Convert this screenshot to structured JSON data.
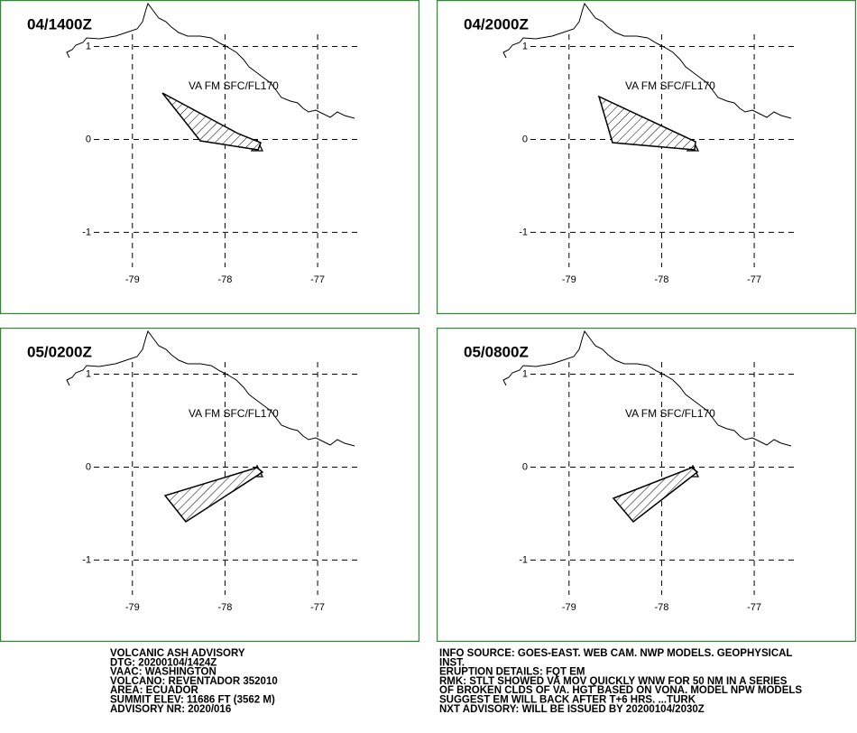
{
  "map": {
    "xlim": [
      -80.43,
      -75.9
    ],
    "ylim": [
      -1.88,
      1.5
    ],
    "lon_ticks": [
      -79,
      -78,
      -77
    ],
    "lat_ticks": [
      1,
      0,
      -1
    ]
  },
  "panels": [
    {
      "title": "04/1400Z",
      "label": "VA FM SFC/FL170"
    },
    {
      "title": "04/2000Z",
      "label": "VA FM SFC/FL170"
    },
    {
      "title": "05/0200Z",
      "label": "VA FM SFC/FL170"
    },
    {
      "title": "05/0800Z",
      "label": "VA FM SFC/FL170"
    }
  ],
  "advisory": {
    "left": [
      "VOLCANIC ASH ADVISORY",
      "DTG: 20200104/1424Z",
      "VAAC: WASHINGTON",
      "VOLCANO: REVENTADOR 352010",
      "AREA: ECUADOR",
      "SUMMIT ELEV: 11686 FT (3562 M)",
      "ADVISORY NR: 2020/016"
    ],
    "right": [
      "INFO SOURCE: GOES-EAST. WEB CAM. NWP MODELS. GEOPHYSICAL",
      "INST.",
      "ERUPTION DETAILS: FQT EM",
      "RMK: STLT SHOWED VA MOV QUICKLY WNW FOR 50 NM IN A SERIES",
      "OF BROKEN CLDS OF VA. HGT BASED ON VONA. MODEL NPW MODELS",
      "SUGGEST EM WILL BACK AFTER T+6 HRS. ...TURK",
      "NXT ADVISORY: WILL BE ISSUED BY 20200104/2030Z"
    ]
  }
}
